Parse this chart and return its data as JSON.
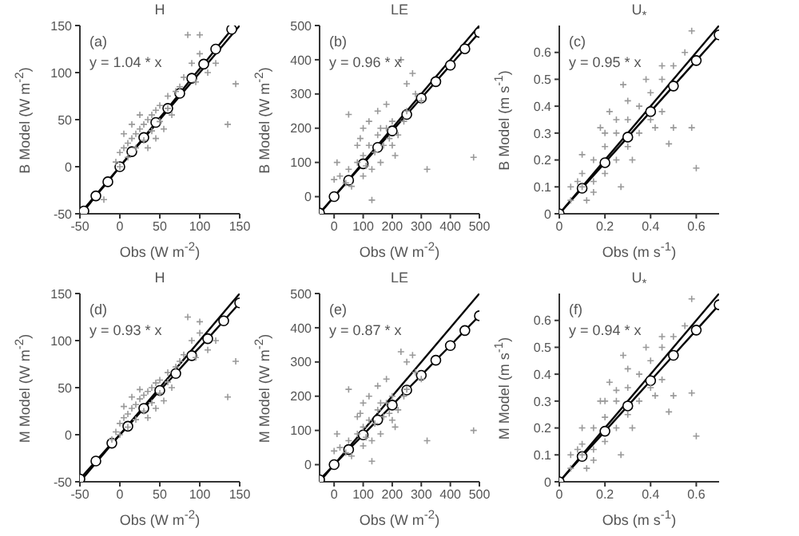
{
  "chart_data": [
    {
      "type": "scatter",
      "title": "H",
      "xlabel": "Obs (W m$^{-2}$)",
      "ylabel": "B Model (W m$^{-2}$)",
      "annotations": [
        "(a)",
        "y = 1.04 * x"
      ],
      "xlim": [
        -50,
        150
      ],
      "ylim": [
        -50,
        150
      ],
      "xticks": [
        -50,
        0,
        50,
        100,
        150
      ],
      "yticks": [
        -50,
        0,
        50,
        100,
        150
      ],
      "series": [
        {
          "marker": "cross",
          "color": "#999999",
          "x": [
            0,
            5,
            10,
            15,
            20,
            25,
            30,
            35,
            40,
            45,
            50,
            10,
            20,
            30,
            40,
            50,
            60,
            70,
            80,
            90,
            85,
            100,
            110,
            145,
            135,
            -20,
            -5,
            0,
            60,
            75,
            95,
            25,
            15,
            5,
            45,
            55,
            65,
            100,
            120,
            35
          ],
          "values": [
            15,
            20,
            25,
            30,
            35,
            40,
            45,
            50,
            55,
            60,
            65,
            10,
            20,
            28,
            38,
            48,
            62,
            80,
            95,
            110,
            140,
            140,
            100,
            88,
            45,
            -35,
            5,
            0,
            75,
            85,
            90,
            55,
            45,
            35,
            30,
            40,
            55,
            120,
            110,
            20
          ]
        },
        {
          "type": "line",
          "marker": "circle",
          "color": "#000000",
          "x": [
            -45,
            -30,
            -15,
            0,
            15,
            30,
            45,
            60,
            75,
            90,
            105,
            120,
            140
          ],
          "values": [
            -47,
            -31,
            -16,
            0,
            16,
            31,
            47,
            62,
            78,
            94,
            109,
            125,
            146
          ]
        },
        {
          "type": "line",
          "marker": "none",
          "color": "#000000",
          "x": [
            -50,
            150
          ],
          "values": [
            -50,
            150
          ]
        }
      ]
    },
    {
      "type": "scatter",
      "title": "LE",
      "xlabel": "Obs (W m$^{-2}$)",
      "ylabel": "B Model (W m$^{-2}$)",
      "annotations": [
        "(b)",
        "y = 0.96 * x"
      ],
      "xlim": [
        -50,
        500
      ],
      "ylim": [
        -50,
        500
      ],
      "xticks": [
        0,
        100,
        200,
        300,
        400,
        500
      ],
      "yticks": [
        0,
        100,
        200,
        300,
        400,
        500
      ],
      "series": [
        {
          "marker": "cross",
          "color": "#999999",
          "x": [
            0,
            20,
            50,
            80,
            100,
            120,
            150,
            180,
            200,
            100,
            120,
            150,
            180,
            80,
            100,
            130,
            160,
            200,
            220,
            250,
            250,
            280,
            300,
            320,
            480,
            270,
            230,
            50,
            10,
            130,
            140,
            170,
            190,
            210,
            60,
            40,
            110,
            90,
            160,
            240
          ],
          "values": [
            50,
            60,
            80,
            100,
            120,
            150,
            180,
            200,
            220,
            200,
            220,
            250,
            270,
            150,
            60,
            80,
            100,
            150,
            180,
            250,
            330,
            300,
            280,
            80,
            115,
            360,
            400,
            240,
            100,
            -10,
            130,
            150,
            170,
            120,
            30,
            40,
            90,
            170,
            200,
            220
          ]
        },
        {
          "type": "line",
          "marker": "circle",
          "color": "#000000",
          "x": [
            -50,
            0,
            50,
            100,
            150,
            200,
            250,
            300,
            350,
            400,
            450,
            500
          ],
          "values": [
            -48,
            0,
            48,
            96,
            144,
            192,
            240,
            288,
            336,
            384,
            432,
            480
          ]
        },
        {
          "type": "line",
          "marker": "none",
          "color": "#000000",
          "x": [
            -50,
            500
          ],
          "values": [
            -50,
            500
          ]
        }
      ]
    },
    {
      "type": "scatter",
      "title": "U$_{*}$",
      "xlabel": "Obs (m s$^{-1}$)",
      "ylabel": "B Model (m s$^{-1}$)",
      "annotations": [
        "(c)",
        "y = 0.95 * x"
      ],
      "xlim": [
        0,
        0.7
      ],
      "ylim": [
        0,
        0.7
      ],
      "xticks": [
        0,
        0.2,
        0.4,
        0.6
      ],
      "yticks": [
        0,
        0.1,
        0.2,
        0.3,
        0.4,
        0.5,
        0.6
      ],
      "series": [
        {
          "marker": "cross",
          "color": "#999999",
          "x": [
            0.05,
            0.1,
            0.1,
            0.15,
            0.15,
            0.2,
            0.2,
            0.2,
            0.25,
            0.25,
            0.25,
            0.3,
            0.3,
            0.3,
            0.35,
            0.35,
            0.4,
            0.4,
            0.45,
            0.45,
            0.5,
            0.5,
            0.55,
            0.58,
            0.58,
            0.6,
            0.48,
            0.12,
            0.08,
            0.18,
            0.22,
            0.28,
            0.45,
            0.42,
            0.1,
            0.15,
            0.05,
            0.38,
            0.27,
            0.32
          ],
          "values": [
            0.05,
            0.1,
            0.15,
            0.2,
            0.12,
            0.25,
            0.3,
            0.15,
            0.3,
            0.35,
            0.2,
            0.35,
            0.25,
            0.42,
            0.4,
            0.3,
            0.45,
            0.35,
            0.5,
            0.38,
            0.55,
            0.32,
            0.6,
            0.68,
            0.32,
            0.17,
            0.26,
            0.05,
            0.12,
            0.32,
            0.38,
            0.48,
            0.55,
            0.32,
            0.22,
            0.08,
            0.1,
            0.5,
            0.1,
            0.2
          ]
        },
        {
          "type": "line",
          "marker": "circle",
          "color": "#000000",
          "x": [
            0,
            0.1,
            0.2,
            0.3,
            0.4,
            0.5,
            0.6,
            0.7
          ],
          "values": [
            0,
            0.095,
            0.19,
            0.285,
            0.38,
            0.475,
            0.57,
            0.665
          ]
        },
        {
          "type": "line",
          "marker": "none",
          "color": "#000000",
          "x": [
            0,
            0.7
          ],
          "values": [
            0,
            0.7
          ]
        }
      ]
    },
    {
      "type": "scatter",
      "title": "H",
      "xlabel": "Obs (W m$^{-2}$)",
      "ylabel": "M Model (W m$^{-2}$)",
      "annotations": [
        "(d)",
        "y = 0.93 * x"
      ],
      "xlim": [
        -50,
        150
      ],
      "ylim": [
        -50,
        150
      ],
      "xticks": [
        -50,
        0,
        50,
        100,
        150
      ],
      "yticks": [
        -50,
        0,
        50,
        100,
        150
      ],
      "series": [
        {
          "marker": "cross",
          "color": "#999999",
          "x": [
            0,
            5,
            10,
            15,
            20,
            25,
            30,
            35,
            40,
            45,
            50,
            10,
            20,
            30,
            40,
            50,
            60,
            70,
            80,
            90,
            85,
            100,
            110,
            145,
            135,
            -10,
            -5,
            0,
            60,
            75,
            95,
            25,
            15,
            5,
            45,
            55,
            65,
            100,
            120,
            35
          ],
          "values": [
            12,
            18,
            22,
            28,
            32,
            38,
            42,
            46,
            50,
            55,
            58,
            8,
            16,
            25,
            34,
            44,
            56,
            72,
            85,
            100,
            125,
            120,
            90,
            78,
            40,
            -5,
            3,
            0,
            66,
            78,
            82,
            48,
            40,
            30,
            28,
            36,
            50,
            108,
            100,
            18
          ]
        },
        {
          "type": "line",
          "marker": "circle",
          "color": "#000000",
          "x": [
            -50,
            -30,
            -10,
            10,
            30,
            50,
            70,
            90,
            110,
            130,
            150
          ],
          "values": [
            -47,
            -28,
            -9,
            9,
            28,
            47,
            65,
            84,
            102,
            121,
            140
          ]
        },
        {
          "type": "line",
          "marker": "none",
          "color": "#000000",
          "x": [
            -50,
            150
          ],
          "values": [
            -50,
            150
          ]
        }
      ]
    },
    {
      "type": "scatter",
      "title": "LE",
      "xlabel": "Obs (W m$^{-2}$)",
      "ylabel": "M Model (W m$^{-2}$)",
      "annotations": [
        "(e)",
        "y = 0.87 * x"
      ],
      "xlim": [
        -50,
        500
      ],
      "ylim": [
        -50,
        500
      ],
      "xticks": [
        0,
        100,
        200,
        300,
        400,
        500
      ],
      "yticks": [
        0,
        100,
        200,
        300,
        400,
        500
      ],
      "series": [
        {
          "marker": "cross",
          "color": "#999999",
          "x": [
            0,
            20,
            50,
            80,
            100,
            120,
            150,
            180,
            200,
            100,
            120,
            150,
            180,
            80,
            100,
            130,
            160,
            200,
            220,
            250,
            250,
            280,
            300,
            320,
            480,
            270,
            230,
            50,
            10,
            130,
            140,
            170,
            190,
            210,
            60,
            40,
            110,
            90,
            160,
            240
          ],
          "values": [
            40,
            50,
            70,
            90,
            110,
            130,
            160,
            180,
            200,
            180,
            200,
            230,
            250,
            140,
            55,
            70,
            90,
            130,
            160,
            220,
            300,
            270,
            250,
            70,
            100,
            320,
            330,
            220,
            90,
            10,
            120,
            140,
            150,
            110,
            25,
            35,
            80,
            150,
            180,
            200
          ]
        },
        {
          "type": "line",
          "marker": "circle",
          "color": "#000000",
          "x": [
            -50,
            0,
            50,
            100,
            150,
            200,
            250,
            300,
            350,
            400,
            450,
            500
          ],
          "values": [
            -44,
            0,
            44,
            87,
            131,
            174,
            218,
            261,
            305,
            348,
            392,
            435
          ]
        },
        {
          "type": "line",
          "marker": "none",
          "color": "#000000",
          "x": [
            -50,
            500
          ],
          "values": [
            -50,
            500
          ]
        }
      ]
    },
    {
      "type": "scatter",
      "title": "U$_{*}$",
      "xlabel": "Obs (m s$^{-1}$)",
      "ylabel": "M Model (m s$^{-1}$)",
      "annotations": [
        "(f)",
        "y = 0.94 * x"
      ],
      "xlim": [
        0,
        0.7
      ],
      "ylim": [
        0,
        0.7
      ],
      "xticks": [
        0,
        0.2,
        0.4,
        0.6
      ],
      "yticks": [
        0,
        0.1,
        0.2,
        0.3,
        0.4,
        0.5,
        0.6
      ],
      "series": [
        {
          "marker": "cross",
          "color": "#999999",
          "x": [
            0.05,
            0.1,
            0.1,
            0.15,
            0.15,
            0.2,
            0.2,
            0.2,
            0.25,
            0.25,
            0.25,
            0.3,
            0.3,
            0.3,
            0.35,
            0.35,
            0.4,
            0.4,
            0.45,
            0.45,
            0.5,
            0.5,
            0.55,
            0.58,
            0.58,
            0.6,
            0.48,
            0.12,
            0.08,
            0.18,
            0.22,
            0.28,
            0.45,
            0.42,
            0.1,
            0.15,
            0.05,
            0.38,
            0.27,
            0.32
          ],
          "values": [
            0.05,
            0.1,
            0.14,
            0.2,
            0.12,
            0.24,
            0.3,
            0.15,
            0.3,
            0.34,
            0.2,
            0.35,
            0.25,
            0.42,
            0.4,
            0.3,
            0.45,
            0.35,
            0.5,
            0.38,
            0.54,
            0.32,
            0.58,
            0.68,
            0.33,
            0.17,
            0.26,
            0.05,
            0.12,
            0.3,
            0.37,
            0.47,
            0.54,
            0.32,
            0.2,
            0.08,
            0.1,
            0.5,
            0.1,
            0.2
          ]
        },
        {
          "type": "line",
          "marker": "circle",
          "color": "#000000",
          "x": [
            0,
            0.1,
            0.2,
            0.3,
            0.4,
            0.5,
            0.6,
            0.7
          ],
          "values": [
            0,
            0.094,
            0.188,
            0.282,
            0.376,
            0.47,
            0.564,
            0.658
          ]
        },
        {
          "type": "line",
          "marker": "none",
          "color": "#000000",
          "x": [
            0,
            0.7
          ],
          "values": [
            0,
            0.7
          ]
        }
      ]
    }
  ]
}
